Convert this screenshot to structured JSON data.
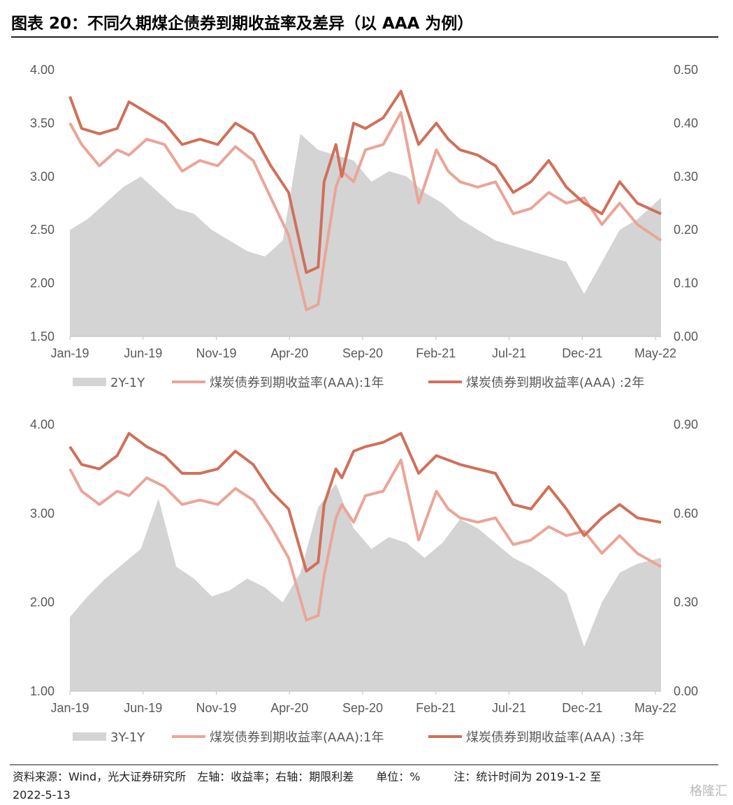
{
  "title": "图表 20：不同久期煤企债券到期收益率及差异（以 AAA 为例）",
  "footer": {
    "line1": "资料来源：Wind，光大证券研究所　左轴：收益率；右轴：期限利差　　单位：%　　　注：统计时间为 2019-1-2 至",
    "line2": "2022-5-13"
  },
  "watermark": "格隆汇",
  "colors": {
    "spread": "#d4d4d4",
    "y1": "#eaa597",
    "y_long": "#d0705a"
  },
  "x_ticks": [
    "Jan-19",
    "Jun-19",
    "Nov-19",
    "Apr-20",
    "Sep-20",
    "Feb-21",
    "Jul-21",
    "Dec-21",
    "May-22"
  ],
  "chart_data": [
    {
      "type": "line",
      "ylim_left": [
        1.5,
        4.0
      ],
      "ylim_right": [
        0.0,
        0.5
      ],
      "left_ticks": [
        "4.00",
        "3.50",
        "3.00",
        "2.50",
        "2.00",
        "1.50"
      ],
      "right_ticks": [
        "0.50",
        "0.40",
        "0.30",
        "0.20",
        "0.10",
        "0.00"
      ],
      "legend": [
        "2Y-1Y",
        "煤炭债券到期收益率(AAA):1年",
        "煤炭债券到期收益率(AAA) :2年"
      ],
      "series": [
        {
          "name": "2Y-1Y",
          "axis": "right",
          "kind": "area",
          "x": [
            0,
            0.03,
            0.06,
            0.09,
            0.12,
            0.15,
            0.18,
            0.21,
            0.24,
            0.27,
            0.3,
            0.33,
            0.36,
            0.39,
            0.42,
            0.45,
            0.48,
            0.51,
            0.54,
            0.57,
            0.6,
            0.63,
            0.66,
            0.69,
            0.72,
            0.75,
            0.78,
            0.81,
            0.84,
            0.87,
            0.9,
            0.93,
            0.96,
            1.0
          ],
          "values": [
            0.2,
            0.22,
            0.25,
            0.28,
            0.3,
            0.27,
            0.24,
            0.23,
            0.2,
            0.18,
            0.16,
            0.15,
            0.18,
            0.38,
            0.35,
            0.34,
            0.33,
            0.29,
            0.31,
            0.3,
            0.27,
            0.25,
            0.22,
            0.2,
            0.18,
            0.17,
            0.16,
            0.15,
            0.14,
            0.08,
            0.14,
            0.2,
            0.22,
            0.26
          ]
        },
        {
          "name": "煤炭债券到期收益率(AAA):1年",
          "axis": "left",
          "kind": "line",
          "x": [
            0,
            0.02,
            0.05,
            0.08,
            0.1,
            0.13,
            0.16,
            0.19,
            0.22,
            0.25,
            0.28,
            0.31,
            0.34,
            0.37,
            0.4,
            0.42,
            0.43,
            0.45,
            0.46,
            0.48,
            0.5,
            0.53,
            0.56,
            0.59,
            0.62,
            0.64,
            0.66,
            0.69,
            0.72,
            0.75,
            0.78,
            0.81,
            0.84,
            0.87,
            0.9,
            0.93,
            0.96,
            1.0
          ],
          "values": [
            3.5,
            3.3,
            3.1,
            3.25,
            3.2,
            3.35,
            3.3,
            3.05,
            3.15,
            3.1,
            3.28,
            3.15,
            2.8,
            2.45,
            1.75,
            1.8,
            2.2,
            2.9,
            3.05,
            2.95,
            3.25,
            3.3,
            3.6,
            2.75,
            3.25,
            3.05,
            2.95,
            2.9,
            2.95,
            2.65,
            2.7,
            2.85,
            2.75,
            2.8,
            2.55,
            2.75,
            2.55,
            2.4
          ]
        },
        {
          "name": "煤炭债券到期收益率(AAA) :2年",
          "axis": "left",
          "kind": "line",
          "x": [
            0,
            0.02,
            0.05,
            0.08,
            0.1,
            0.13,
            0.16,
            0.19,
            0.22,
            0.25,
            0.28,
            0.31,
            0.34,
            0.37,
            0.4,
            0.42,
            0.43,
            0.45,
            0.46,
            0.48,
            0.5,
            0.53,
            0.56,
            0.59,
            0.62,
            0.64,
            0.66,
            0.69,
            0.72,
            0.75,
            0.78,
            0.81,
            0.84,
            0.87,
            0.9,
            0.93,
            0.96,
            1.0
          ],
          "values": [
            3.75,
            3.45,
            3.4,
            3.45,
            3.7,
            3.6,
            3.5,
            3.3,
            3.35,
            3.3,
            3.5,
            3.4,
            3.1,
            2.85,
            2.1,
            2.15,
            2.95,
            3.3,
            3.0,
            3.5,
            3.45,
            3.55,
            3.8,
            3.3,
            3.5,
            3.35,
            3.25,
            3.2,
            3.1,
            2.85,
            2.95,
            3.15,
            2.9,
            2.75,
            2.65,
            2.95,
            2.75,
            2.65
          ]
        }
      ]
    },
    {
      "type": "line",
      "ylim_left": [
        1.0,
        4.0
      ],
      "ylim_right": [
        0.0,
        0.9
      ],
      "left_ticks": [
        "4.00",
        "3.00",
        "2.00",
        "1.00"
      ],
      "right_ticks": [
        "0.90",
        "0.60",
        "0.30",
        "0.00"
      ],
      "legend": [
        "3Y-1Y",
        "煤炭债券到期收益率(AAA):1年",
        "煤炭债券到期收益率(AAA) :3年"
      ],
      "series": [
        {
          "name": "3Y-1Y",
          "axis": "right",
          "kind": "area",
          "x": [
            0,
            0.03,
            0.06,
            0.09,
            0.12,
            0.15,
            0.18,
            0.21,
            0.24,
            0.27,
            0.3,
            0.33,
            0.36,
            0.39,
            0.42,
            0.45,
            0.48,
            0.51,
            0.54,
            0.57,
            0.6,
            0.63,
            0.66,
            0.69,
            0.72,
            0.75,
            0.78,
            0.81,
            0.84,
            0.87,
            0.9,
            0.93,
            0.96,
            1.0
          ],
          "values": [
            0.25,
            0.32,
            0.38,
            0.43,
            0.48,
            0.65,
            0.42,
            0.38,
            0.32,
            0.34,
            0.38,
            0.35,
            0.3,
            0.4,
            0.62,
            0.7,
            0.55,
            0.48,
            0.52,
            0.5,
            0.45,
            0.5,
            0.58,
            0.55,
            0.5,
            0.45,
            0.42,
            0.38,
            0.33,
            0.15,
            0.3,
            0.4,
            0.43,
            0.45
          ]
        },
        {
          "name": "煤炭债券到期收益率(AAA):1年",
          "axis": "left",
          "kind": "line",
          "x": [
            0,
            0.02,
            0.05,
            0.08,
            0.1,
            0.13,
            0.16,
            0.19,
            0.22,
            0.25,
            0.28,
            0.31,
            0.34,
            0.37,
            0.4,
            0.42,
            0.43,
            0.45,
            0.46,
            0.48,
            0.5,
            0.53,
            0.56,
            0.59,
            0.62,
            0.64,
            0.66,
            0.69,
            0.72,
            0.75,
            0.78,
            0.81,
            0.84,
            0.87,
            0.9,
            0.93,
            0.96,
            1.0
          ],
          "values": [
            3.5,
            3.25,
            3.1,
            3.25,
            3.2,
            3.4,
            3.3,
            3.1,
            3.15,
            3.1,
            3.28,
            3.15,
            2.85,
            2.5,
            1.8,
            1.85,
            2.3,
            2.95,
            3.1,
            2.9,
            3.2,
            3.25,
            3.6,
            2.7,
            3.25,
            3.05,
            2.95,
            2.9,
            2.95,
            2.65,
            2.7,
            2.85,
            2.75,
            2.8,
            2.55,
            2.75,
            2.55,
            2.4
          ]
        },
        {
          "name": "煤炭债券到期收益率(AAA) :3年",
          "axis": "left",
          "kind": "line",
          "x": [
            0,
            0.02,
            0.05,
            0.08,
            0.1,
            0.13,
            0.16,
            0.19,
            0.22,
            0.25,
            0.28,
            0.31,
            0.34,
            0.37,
            0.4,
            0.42,
            0.43,
            0.45,
            0.46,
            0.48,
            0.5,
            0.53,
            0.56,
            0.59,
            0.62,
            0.64,
            0.66,
            0.69,
            0.72,
            0.75,
            0.78,
            0.81,
            0.84,
            0.87,
            0.9,
            0.93,
            0.96,
            1.0
          ],
          "values": [
            3.75,
            3.55,
            3.5,
            3.65,
            3.9,
            3.75,
            3.65,
            3.45,
            3.45,
            3.5,
            3.7,
            3.55,
            3.25,
            3.05,
            2.35,
            2.45,
            3.1,
            3.5,
            3.4,
            3.7,
            3.75,
            3.8,
            3.9,
            3.45,
            3.65,
            3.6,
            3.55,
            3.5,
            3.45,
            3.1,
            3.05,
            3.3,
            3.05,
            2.75,
            2.95,
            3.1,
            2.95,
            2.9
          ]
        }
      ]
    }
  ]
}
